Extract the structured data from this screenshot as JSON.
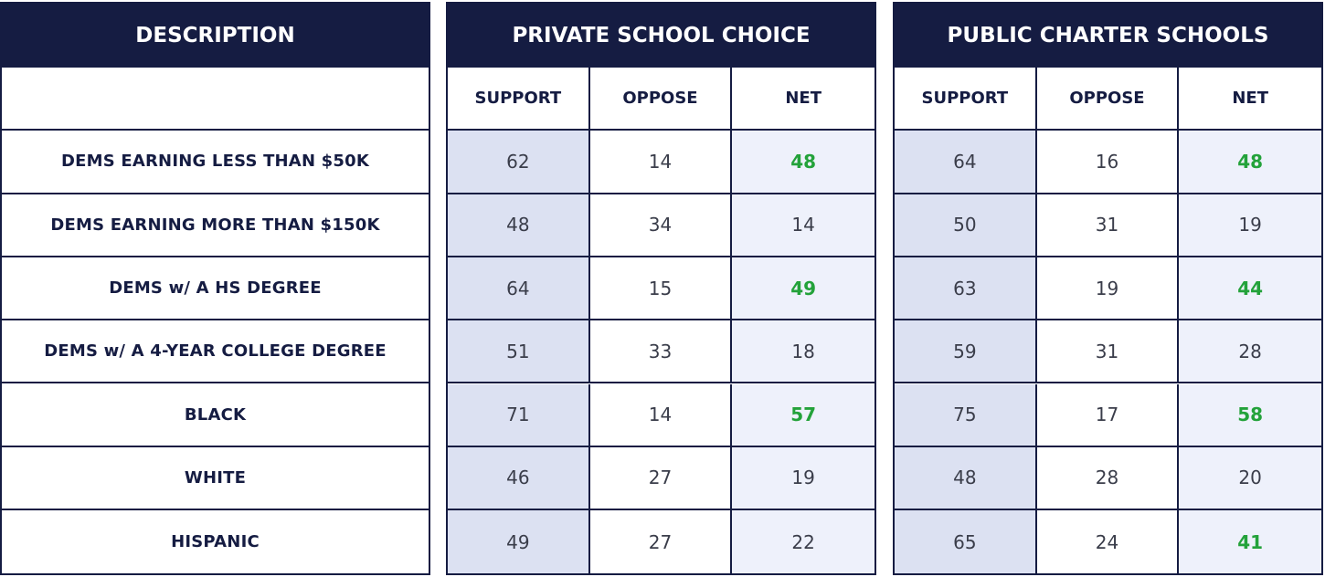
{
  "description": {
    "title": "DESCRIPTION",
    "rows": [
      "DEMS EARNING LESS THAN $50K",
      "DEMS EARNING MORE THAN $150K",
      "DEMS w/ A HS DEGREE",
      "DEMS w/ A 4-YEAR COLLEGE DEGREE",
      "BLACK",
      "WHITE",
      "HISPANIC"
    ]
  },
  "groups": [
    {
      "title": "PRIVATE SCHOOL CHOICE",
      "columns": [
        "SUPPORT",
        "OPPOSE",
        "NET"
      ],
      "rows": [
        [
          62,
          14,
          48
        ],
        [
          48,
          34,
          14
        ],
        [
          64,
          15,
          49
        ],
        [
          51,
          33,
          18
        ],
        [
          71,
          14,
          57
        ],
        [
          46,
          27,
          19
        ],
        [
          49,
          27,
          22
        ]
      ]
    },
    {
      "title": "PUBLIC CHARTER SCHOOLS",
      "columns": [
        "SUPPORT",
        "OPPOSE",
        "NET"
      ],
      "rows": [
        [
          64,
          16,
          48
        ],
        [
          50,
          31,
          19
        ],
        [
          63,
          19,
          44
        ],
        [
          59,
          31,
          28
        ],
        [
          75,
          17,
          58
        ],
        [
          48,
          28,
          20
        ],
        [
          65,
          24,
          41
        ]
      ]
    }
  ]
}
